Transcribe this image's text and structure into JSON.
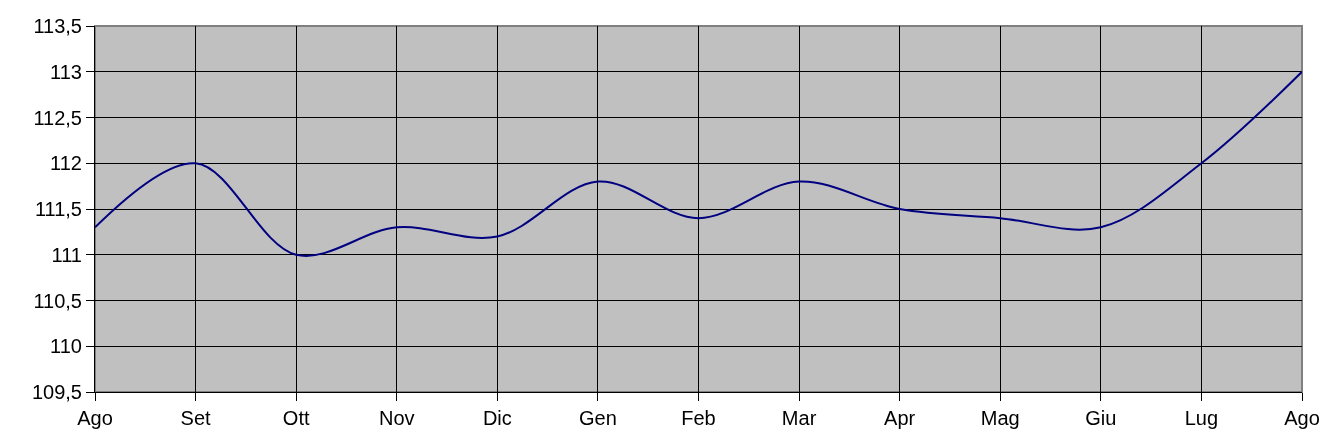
{
  "chart_data": {
    "type": "line",
    "categories": [
      "Ago",
      "Set",
      "Ott",
      "Nov",
      "Dic",
      "Gen",
      "Feb",
      "Mar",
      "Apr",
      "Mag",
      "Giu",
      "Lug",
      "Ago"
    ],
    "series": [
      {
        "color": "#000080",
        "values": [
          111.3,
          112,
          111,
          111.3,
          111.2,
          111.8,
          111.4,
          111.8,
          111.5,
          111.4,
          111.3,
          112,
          113
        ]
      }
    ],
    "ylim": [
      109.5,
      113.5
    ],
    "yticks": [
      {
        "value": 109.5,
        "label": "109,5"
      },
      110,
      {
        "value": 110.5,
        "label": "110,5"
      },
      111,
      {
        "value": 111.5,
        "label": "111,5"
      },
      112,
      {
        "value": 112.5,
        "label": "112,5"
      },
      113,
      {
        "value": 113.5,
        "label": "113,5"
      }
    ],
    "grid": true,
    "marker": "none",
    "line_style": "solid"
  }
}
